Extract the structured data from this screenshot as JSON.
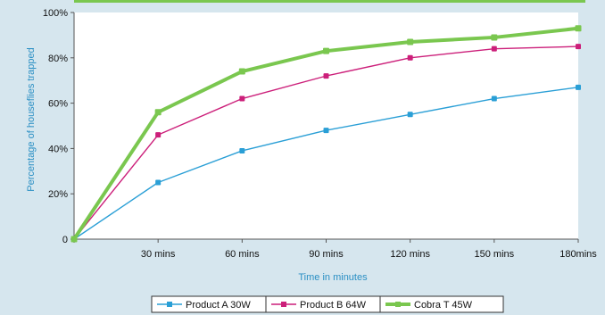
{
  "chart_data": {
    "type": "line",
    "categories": [
      "0",
      "30 mins",
      "60 mins",
      "90 mins",
      "120 mins",
      "150 mins",
      "180mins"
    ],
    "x_tick_labels": [
      "",
      "30 mins",
      "60 mins",
      "90 mins",
      "120 mins",
      "150 mins",
      "180mins"
    ],
    "x_minutes": [
      0,
      30,
      60,
      90,
      120,
      150,
      180
    ],
    "y_ticks": [
      0,
      20,
      40,
      60,
      80,
      100
    ],
    "y_tick_labels": [
      "0",
      "20%",
      "40%",
      "60%",
      "80%",
      "100%"
    ],
    "ylim": [
      0,
      100
    ],
    "xlabel": "Time in minutes",
    "ylabel": "Percentage of houseflies trapped",
    "grid": false,
    "legend_position": "bottom-center",
    "series": [
      {
        "name": "Product A 30W",
        "color": "#2a9fd6",
        "marker": "square",
        "values": [
          0,
          25,
          39,
          48,
          55,
          62,
          67
        ]
      },
      {
        "name": "Product B 64W",
        "color": "#cc1f7a",
        "marker": "square",
        "values": [
          0,
          46,
          62,
          72,
          80,
          84,
          85
        ]
      },
      {
        "name": "Cobra T 45W",
        "color": "#7ac74f",
        "marker": "square",
        "values": [
          0,
          56,
          74,
          83,
          87,
          89,
          93
        ]
      }
    ]
  },
  "colors": {
    "background": "#d6e6ee",
    "plot_area": "#ffffff",
    "top_bar": "#7ac74f",
    "axis_title": "#2a8fc4"
  }
}
